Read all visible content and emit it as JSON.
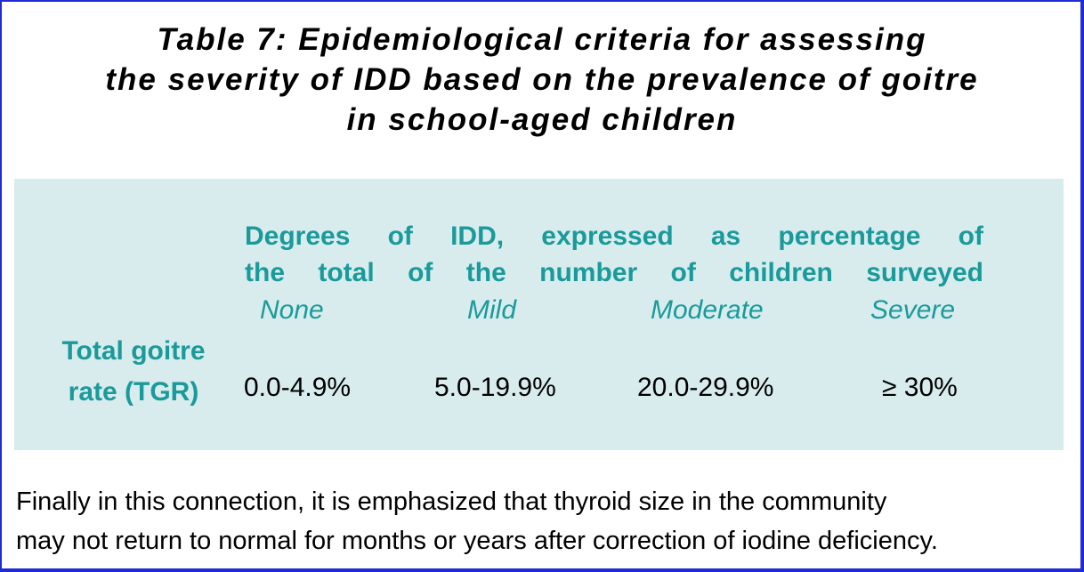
{
  "title": {
    "line1": "Table 7: Epidemiological criteria for assessing",
    "line2": "the severity of IDD based on the prevalence of goitre",
    "line3": "in school-aged children"
  },
  "table": {
    "column_group_heading": {
      "line1": "Degrees of IDD, expressed as percentage of",
      "line2": "the total of the number of children surveyed"
    },
    "degrees": [
      "None",
      "Mild",
      "Moderate",
      "Severe"
    ],
    "row_label": {
      "line1": "Total goitre",
      "line2": "rate (TGR)"
    },
    "values": [
      "0.0-4.9%",
      "5.0-19.9%",
      "20.0-29.9%",
      "≥ 30%"
    ]
  },
  "footer": {
    "line1": "Finally in this connection, it is emphasized that thyroid size in the community",
    "line2": "may not return to normal for months or years after correction of iodine deficiency."
  },
  "colors": {
    "border": "#1f2bd6",
    "panel_background": "#d8ecee",
    "teal_text": "#1a9a9a"
  }
}
